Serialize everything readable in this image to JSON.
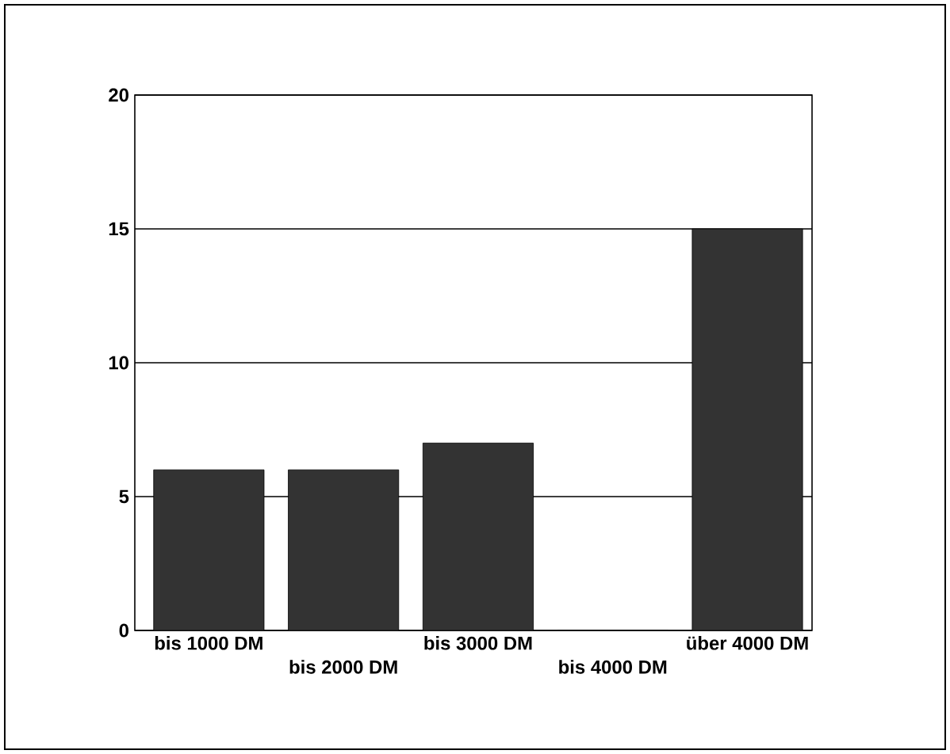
{
  "chart_data": {
    "type": "bar",
    "categories": [
      "bis 1000 DM",
      "bis 2000 DM",
      "bis 3000 DM",
      "bis 4000 DM",
      "über 4000 DM"
    ],
    "values": [
      6,
      6,
      7,
      0,
      15
    ],
    "color": "#333333",
    "ylim": [
      0,
      20
    ],
    "yticks": [
      0,
      5,
      10,
      15,
      20
    ],
    "grid": "y"
  }
}
